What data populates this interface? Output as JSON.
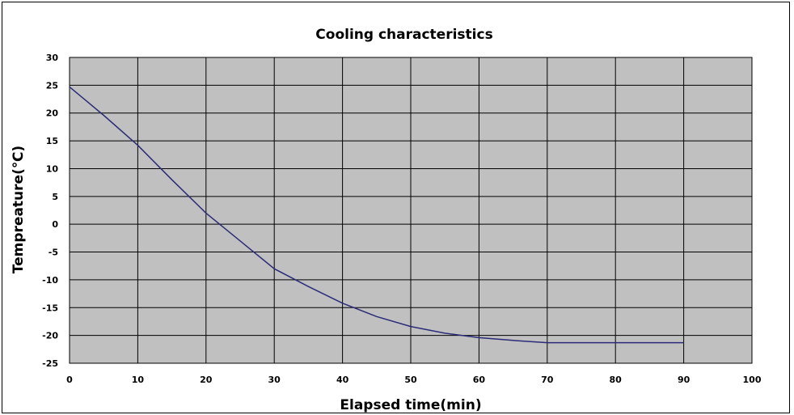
{
  "chart_data": {
    "type": "line",
    "title": "Cooling characteristics",
    "xlabel": "Elapsed time(min)",
    "ylabel": "Tempreature(℃)",
    "xlim": [
      0,
      100
    ],
    "ylim": [
      -25,
      30
    ],
    "x_ticks": [
      "0",
      "10",
      "20",
      "30",
      "40",
      "50",
      "60",
      "70",
      "80",
      "90",
      "100"
    ],
    "y_ticks": [
      "30",
      "25",
      "20",
      "15",
      "10",
      "5",
      "0",
      "-5",
      "-10",
      "-15",
      "-20",
      "-25"
    ],
    "grid": true,
    "legend": "none",
    "colors": {
      "plot_bg": "#c0c0c0",
      "line": "#2b2b7a",
      "grid": "#000000"
    },
    "series": [
      {
        "x": [
          0,
          5,
          10,
          15,
          20,
          25,
          30,
          35,
          40,
          45,
          50,
          55,
          60,
          65,
          70,
          75,
          80,
          85,
          90
        ],
        "values": [
          24.7,
          19.6,
          14.2,
          8,
          2,
          -3,
          -8,
          -11.2,
          -14.2,
          -16.6,
          -18.4,
          -19.6,
          -20.4,
          -20.9,
          -21.3,
          -21.3,
          -21.3,
          -21.3,
          -21.3
        ]
      }
    ]
  }
}
